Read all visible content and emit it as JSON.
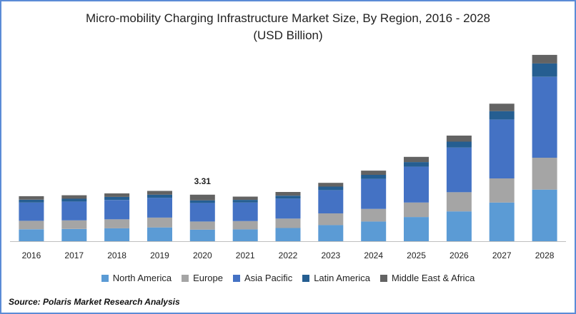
{
  "chart_data": {
    "type": "bar",
    "stacked": true,
    "title": "Micro-mobility Charging Infrastructure Market Size, By Region, 2016 - 2028",
    "subtitle": "(USD Billion)",
    "categories": [
      "2016",
      "2017",
      "2018",
      "2019",
      "2020",
      "2021",
      "2022",
      "2023",
      "2024",
      "2025",
      "2026",
      "2027",
      "2028"
    ],
    "series": [
      {
        "name": "North America",
        "color": "#5b9bd5",
        "values": [
          0.85,
          0.87,
          0.92,
          0.98,
          0.82,
          0.84,
          0.94,
          1.15,
          1.4,
          1.72,
          2.12,
          2.75,
          3.67
        ]
      },
      {
        "name": "Europe",
        "color": "#a5a5a5",
        "values": [
          0.6,
          0.61,
          0.64,
          0.7,
          0.58,
          0.59,
          0.67,
          0.83,
          0.9,
          1.03,
          1.37,
          1.72,
          2.27
        ]
      },
      {
        "name": "Asia Pacific",
        "color": "#4472c4",
        "values": [
          1.3,
          1.34,
          1.37,
          1.4,
          1.32,
          1.32,
          1.42,
          1.65,
          2.13,
          2.55,
          3.17,
          4.18,
          5.75
        ]
      },
      {
        "name": "Latin America",
        "color": "#255e91",
        "values": [
          0.2,
          0.2,
          0.22,
          0.23,
          0.19,
          0.19,
          0.21,
          0.25,
          0.29,
          0.33,
          0.42,
          0.6,
          0.95
        ]
      },
      {
        "name": "Middle East & Africa",
        "color": "#636363",
        "values": [
          0.25,
          0.25,
          0.25,
          0.27,
          0.4,
          0.23,
          0.26,
          0.27,
          0.3,
          0.37,
          0.43,
          0.53,
          0.61
        ]
      }
    ],
    "data_labels": [
      {
        "category": "2020",
        "text": "3.31"
      }
    ],
    "ylim": [
      0,
      13.5
    ],
    "xlabel": "",
    "ylabel": "",
    "legend": "bottom"
  },
  "source": "Source: Polaris  Market Research Analysis"
}
